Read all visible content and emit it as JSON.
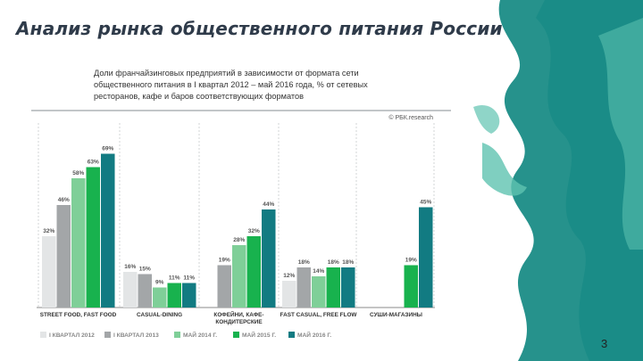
{
  "slide": {
    "title": "Анализ рынка общественного питания России",
    "page_number": "3"
  },
  "colors": {
    "series": [
      "#e3e5e6",
      "#a3a6a8",
      "#7fcf98",
      "#18b24e",
      "#127b82"
    ],
    "paint_main": "#1a8c86",
    "paint_light": "#5fc3b0"
  },
  "chart_data": {
    "type": "bar",
    "title_lines": [
      "Доли франчайзинговых предприятий в зависимости от формата сети",
      "общественного питания в I квартал 2012 – май 2016 года, % от сетевых",
      "ресторанов, кафе и баров соответствующих форматов"
    ],
    "source": "© РБК.research",
    "categories": [
      [
        "STREET FOOD, FAST FOOD"
      ],
      [
        "CASUAL-DINING"
      ],
      [
        "КОФЕЙНИ, КАФЕ-",
        "КОНДИТЕРСКИЕ"
      ],
      [
        "FAST CASUAL, FREE FLOW"
      ],
      [
        "СУШИ-МАГАЗИНЫ"
      ]
    ],
    "series": [
      {
        "name": "I КВАРТАЛ 2012",
        "values": [
          32,
          16,
          null,
          12,
          null
        ]
      },
      {
        "name": "I КВАРТАЛ 2013",
        "values": [
          46,
          15,
          19,
          18,
          null
        ]
      },
      {
        "name": "МАЙ 2014 Г.",
        "values": [
          58,
          9,
          28,
          14,
          null
        ]
      },
      {
        "name": "МАЙ 2015 Г.",
        "values": [
          63,
          11,
          32,
          18,
          19
        ]
      },
      {
        "name": "МАЙ 2016 Г.",
        "values": [
          69,
          11,
          44,
          18,
          45
        ]
      }
    ],
    "data_labels": [
      [
        "32%",
        "16%",
        null,
        "12%",
        null
      ],
      [
        "46%",
        "15%",
        "19%",
        "18%",
        null
      ],
      [
        "58%",
        "9%",
        "28%",
        "14%",
        null
      ],
      [
        "63%",
        "11%",
        "32%",
        "18%",
        "19%"
      ],
      [
        "69%",
        "11%",
        "44%",
        "18%",
        "45%"
      ]
    ],
    "ylim": [
      0,
      72
    ],
    "legend_position": "bottom"
  }
}
